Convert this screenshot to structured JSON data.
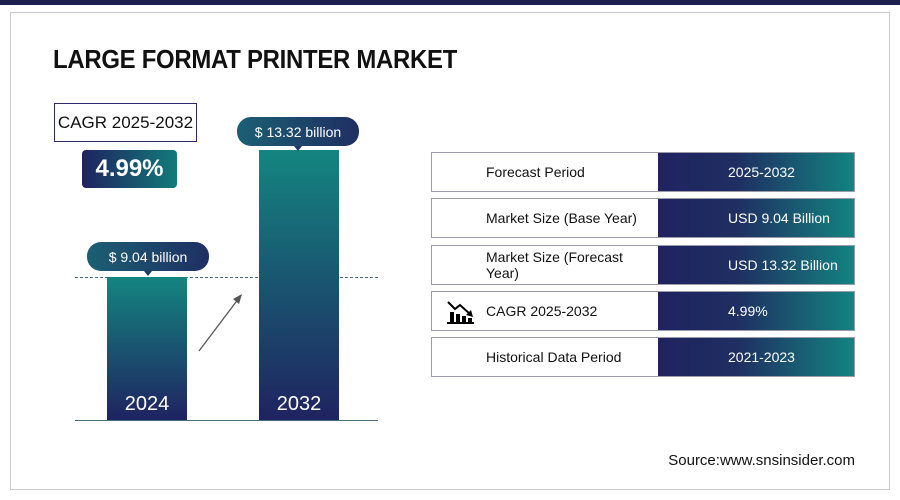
{
  "title": "LARGE FORMAT PRINTER MARKET",
  "cagr": {
    "label": "CAGR 2025-2032",
    "value": "4.99%"
  },
  "bars": [
    {
      "year": "2024",
      "label": "$ 9.04 billion",
      "value": 9.04
    },
    {
      "year": "2032",
      "label": "$ 13.32 billion",
      "value": 13.32
    }
  ],
  "table": [
    {
      "label": "Forecast Period",
      "value": "2025-2032"
    },
    {
      "label": "Market Size (Base Year)",
      "value": "USD 9.04 Billion"
    },
    {
      "label": "Market Size (Forecast Year)",
      "value": "USD 13.32 Billion"
    },
    {
      "label": "CAGR 2025-2032",
      "value": "4.99%",
      "icon": "chart-decline-icon"
    },
    {
      "label": "Historical Data Period",
      "value": "2021-2023"
    }
  ],
  "source": "Source:www.snsinsider.com"
}
